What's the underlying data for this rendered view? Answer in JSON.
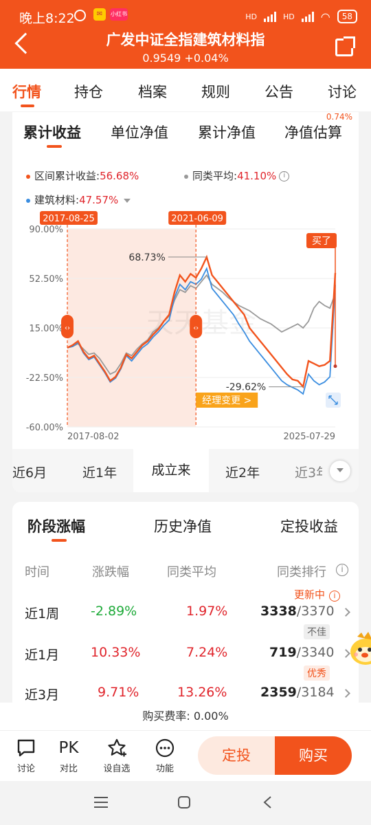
{
  "status": {
    "time": "晚上8:22",
    "app_badge": "小红书",
    "network1": "HD",
    "network2": "HD",
    "battery": "58"
  },
  "header": {
    "title": "广发中证全指建筑材料指",
    "subtitle": "0.9549 +0.04%"
  },
  "main_tabs": [
    "行情",
    "持仓",
    "档案",
    "规则",
    "公告",
    "讨论"
  ],
  "sub_tabs": [
    "累计收益",
    "单位净值",
    "累计净值",
    "净值估算"
  ],
  "sub_badge": "0.74%",
  "legend": {
    "fund_label": "区间累计收益:",
    "fund_value": "56.68%",
    "peer_label": "同类平均:",
    "peer_value": "41.10%",
    "index_label": "建筑材料:",
    "index_value": "47.57%"
  },
  "colors": {
    "accent": "#f2531c",
    "fund": "#f2531c",
    "peer": "#999999",
    "index": "#3a8de0",
    "green": "#1eaa39",
    "red": "#e0242b"
  },
  "chart_data": {
    "type": "line",
    "ylim": [
      -60,
      90
    ],
    "y_ticks": [
      "90.00%",
      "52.50%",
      "15.00%",
      "-22.50%",
      "-60.00%"
    ],
    "x_start_label": "2017-08-02",
    "x_end_label": "2025-07-29",
    "range_start_label": "2017-08-25",
    "range_end_label": "2021-06-09",
    "max_label": "68.73%",
    "max_value": 68.73,
    "min_label": "-29.62%",
    "min_value": -29.62,
    "buy_label": "买了",
    "manager_change_label": "经理变更 >",
    "x": [
      0,
      0.02,
      0.04,
      0.06,
      0.08,
      0.1,
      0.12,
      0.14,
      0.16,
      0.18,
      0.2,
      0.22,
      0.24,
      0.26,
      0.28,
      0.3,
      0.32,
      0.34,
      0.36,
      0.38,
      0.4,
      0.42,
      0.44,
      0.46,
      0.48,
      0.5,
      0.52,
      0.54,
      0.56,
      0.58,
      0.6,
      0.62,
      0.64,
      0.66,
      0.68,
      0.7,
      0.72,
      0.74,
      0.76,
      0.78,
      0.8,
      0.82,
      0.84,
      0.86,
      0.88,
      0.9,
      0.92,
      0.94,
      0.96,
      0.98,
      1.0
    ],
    "series": [
      {
        "name": "区间累计收益",
        "values": [
          0,
          2,
          5,
          -3,
          -8,
          -6,
          -12,
          -18,
          -25,
          -22,
          -15,
          -5,
          -8,
          -3,
          2,
          5,
          10,
          14,
          20,
          25,
          42,
          55,
          50,
          56,
          53,
          60,
          68.7,
          55,
          50,
          45,
          40,
          35,
          30,
          25,
          15,
          10,
          5,
          0,
          -5,
          -10,
          -15,
          -20,
          -24,
          -25,
          -29.6,
          -10,
          -12,
          -14,
          -13,
          -10,
          56.7
        ]
      },
      {
        "name": "同类平均",
        "values": [
          0,
          1,
          3,
          -1,
          -5,
          -4,
          -8,
          -14,
          -20,
          -18,
          -12,
          -4,
          -6,
          -1,
          3,
          6,
          12,
          15,
          20,
          24,
          36,
          44,
          42,
          47,
          45,
          50,
          55,
          48,
          45,
          42,
          38,
          35,
          32,
          30,
          28,
          25,
          22,
          20,
          18,
          15,
          12,
          14,
          16,
          18,
          15,
          20,
          30,
          35,
          32,
          30,
          41.1
        ]
      },
      {
        "name": "建筑材料",
        "values": [
          0,
          1,
          4,
          -4,
          -9,
          -7,
          -13,
          -19,
          -26,
          -23,
          -16,
          -6,
          -10,
          -5,
          0,
          3,
          8,
          12,
          17,
          21,
          38,
          48,
          44,
          50,
          48,
          52,
          60,
          45,
          40,
          35,
          30,
          25,
          18,
          12,
          5,
          0,
          -5,
          -10,
          -15,
          -20,
          -25,
          -28,
          -30,
          -32,
          -35,
          -20,
          -25,
          -28,
          -26,
          -22,
          47.6
        ]
      }
    ]
  },
  "period_tabs": [
    "近6月",
    "近1年",
    "成立来",
    "近2年",
    "近3年"
  ],
  "perf_tabs": [
    "阶段涨幅",
    "历史净值",
    "定投收益"
  ],
  "perf_headers": [
    "时间",
    "涨跌幅",
    "同类平均",
    "同类排行"
  ],
  "perf_updating": "更新中",
  "perf_rows": [
    {
      "period": "近1周",
      "change": "-2.89%",
      "avg": "1.97%",
      "rank": "3338",
      "total": "/3370",
      "tag": "不佳"
    },
    {
      "period": "近1月",
      "change": "10.33%",
      "avg": "7.24%",
      "rank": "719",
      "total": "/3340",
      "tag": "优秀"
    },
    {
      "period": "近3月",
      "change": "9.71%",
      "avg": "13.26%",
      "rank": "2359",
      "total": "/3184",
      "tag": ""
    }
  ],
  "fee": "购买费率: 0.00%",
  "bottom_items": [
    {
      "label": "讨论",
      "icon": "comment-icon"
    },
    {
      "label": "对比",
      "icon_text": "PK"
    },
    {
      "label": "设自选",
      "icon": "star-plus-icon"
    },
    {
      "label": "功能",
      "icon": "more-dots-icon"
    }
  ],
  "buttons": {
    "dingtou": "定投",
    "buy": "购买"
  }
}
